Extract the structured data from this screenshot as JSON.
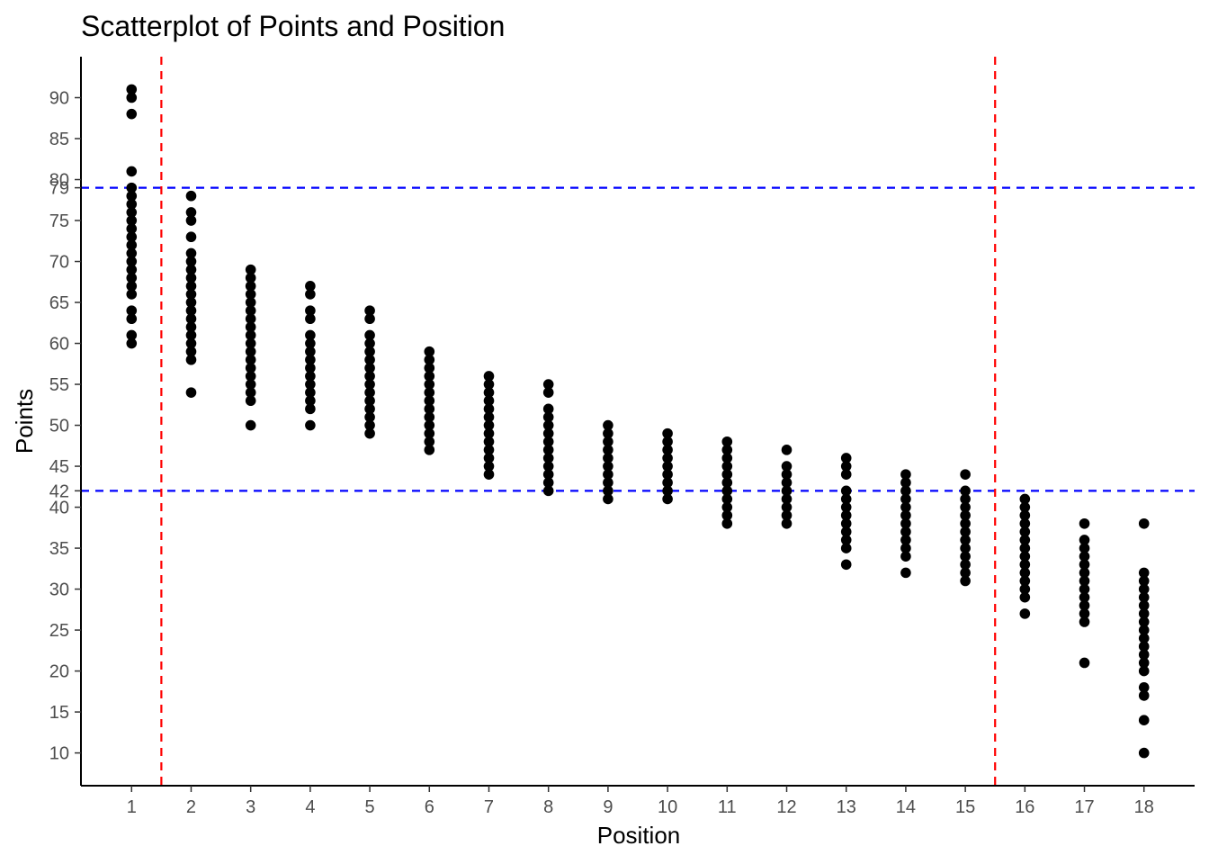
{
  "chart_data": {
    "type": "scatter",
    "title": "Scatterplot of Points and Position",
    "xlabel": "Position",
    "ylabel": "Points",
    "xlim": [
      0.15,
      18.85
    ],
    "ylim": [
      6,
      95
    ],
    "x_ticks": [
      1,
      2,
      3,
      4,
      5,
      6,
      7,
      8,
      9,
      10,
      11,
      12,
      13,
      14,
      15,
      16,
      17,
      18
    ],
    "y_ticks": [
      10,
      15,
      20,
      25,
      30,
      35,
      40,
      42,
      45,
      50,
      55,
      60,
      65,
      70,
      75,
      79,
      80,
      85,
      90
    ],
    "grid": false,
    "legend": "none",
    "reference_lines": {
      "horizontal": [
        {
          "value": 79,
          "color": "#0000ff",
          "style": "dashed"
        },
        {
          "value": 42,
          "color": "#0000ff",
          "style": "dashed"
        }
      ],
      "vertical": [
        {
          "value": 1.5,
          "color": "#ff0000",
          "style": "dashed"
        },
        {
          "value": 15.5,
          "color": "#ff0000",
          "style": "dashed"
        }
      ]
    },
    "point_color": "#000000",
    "series": [
      {
        "points_by_position": [
          {
            "x": 1,
            "y": [
              60,
              61,
              63,
              64,
              66,
              67,
              68,
              69,
              70,
              71,
              72,
              73,
              74,
              75,
              76,
              77,
              78,
              79,
              81,
              88,
              90,
              91
            ]
          },
          {
            "x": 2,
            "y": [
              54,
              58,
              59,
              60,
              61,
              62,
              63,
              64,
              65,
              66,
              67,
              68,
              69,
              70,
              71,
              73,
              75,
              76,
              78
            ]
          },
          {
            "x": 3,
            "y": [
              50,
              53,
              54,
              55,
              56,
              57,
              58,
              59,
              60,
              61,
              62,
              63,
              64,
              65,
              66,
              67,
              68,
              69
            ]
          },
          {
            "x": 4,
            "y": [
              50,
              52,
              53,
              54,
              55,
              56,
              57,
              58,
              59,
              60,
              61,
              63,
              64,
              66,
              67
            ]
          },
          {
            "x": 5,
            "y": [
              49,
              50,
              51,
              52,
              53,
              54,
              55,
              56,
              57,
              58,
              59,
              60,
              61,
              63,
              64
            ]
          },
          {
            "x": 6,
            "y": [
              47,
              48,
              49,
              50,
              51,
              52,
              53,
              54,
              55,
              56,
              57,
              58,
              59
            ]
          },
          {
            "x": 7,
            "y": [
              44,
              45,
              46,
              47,
              48,
              49,
              50,
              51,
              52,
              53,
              54,
              55,
              56
            ]
          },
          {
            "x": 8,
            "y": [
              42,
              43,
              44,
              45,
              46,
              47,
              48,
              49,
              50,
              51,
              52,
              54,
              55
            ]
          },
          {
            "x": 9,
            "y": [
              41,
              42,
              43,
              44,
              45,
              46,
              47,
              48,
              49,
              50
            ]
          },
          {
            "x": 10,
            "y": [
              41,
              42,
              43,
              44,
              45,
              46,
              47,
              48,
              49
            ]
          },
          {
            "x": 11,
            "y": [
              38,
              39,
              40,
              41,
              42,
              43,
              44,
              45,
              46,
              47,
              48
            ]
          },
          {
            "x": 12,
            "y": [
              38,
              39,
              40,
              41,
              42,
              43,
              44,
              45,
              47
            ]
          },
          {
            "x": 13,
            "y": [
              33,
              35,
              36,
              37,
              38,
              39,
              40,
              41,
              42,
              44,
              45,
              46
            ]
          },
          {
            "x": 14,
            "y": [
              32,
              34,
              35,
              36,
              37,
              38,
              39,
              40,
              41,
              42,
              43,
              44
            ]
          },
          {
            "x": 15,
            "y": [
              31,
              32,
              33,
              34,
              35,
              36,
              37,
              38,
              39,
              40,
              41,
              42,
              44
            ]
          },
          {
            "x": 16,
            "y": [
              27,
              29,
              30,
              31,
              32,
              33,
              34,
              35,
              36,
              37,
              38,
              39,
              40,
              41
            ]
          },
          {
            "x": 17,
            "y": [
              21,
              26,
              27,
              28,
              29,
              30,
              31,
              32,
              33,
              34,
              35,
              36,
              38
            ]
          },
          {
            "x": 18,
            "y": [
              10,
              14,
              17,
              18,
              20,
              21,
              22,
              23,
              24,
              25,
              26,
              27,
              28,
              29,
              30,
              31,
              32,
              38
            ]
          }
        ]
      }
    ]
  }
}
